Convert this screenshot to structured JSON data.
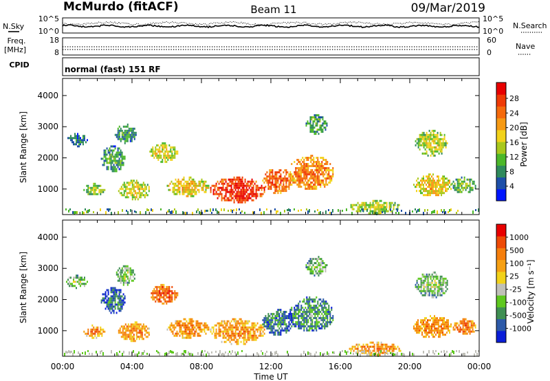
{
  "header": {
    "station": "McMurdo (fitACF)",
    "beam": "Beam 11",
    "date": "09/Mar/2019"
  },
  "noise_panel": {
    "left_label": "N.Sky",
    "right_label": "N.Search",
    "tick_top_left": "10^5",
    "tick_bottom_left": "10^0",
    "tick_top_right": "10^5",
    "tick_bottom_right": "10^0"
  },
  "freq_panel": {
    "left_label_1": "Freq.",
    "left_label_2": "[MHz]",
    "right_label": "Nave",
    "left_ticks": [
      "18",
      "8"
    ],
    "right_ticks": [
      "60",
      "0"
    ]
  },
  "cpid_panel": {
    "label": "CPID",
    "mode": "normal (fast) 151 RF"
  },
  "x_axis": {
    "title": "Time UT",
    "ticks": [
      "00:00",
      "04:00",
      "08:00",
      "12:00",
      "16:00",
      "20:00",
      "00:00"
    ]
  },
  "chart_data": [
    {
      "type": "heatmap",
      "title": "",
      "ylabel": "Slant Range [km]",
      "xlabel": "Time UT",
      "xlim": [
        0,
        24
      ],
      "ylim": [
        180,
        4550
      ],
      "yticks": [
        "1000",
        "2000",
        "3000",
        "4000"
      ],
      "colorbar": {
        "label": "Power [dB]",
        "tick_labels": [
          "4",
          "8",
          "12",
          "16",
          "20",
          "24",
          "28"
        ],
        "colors": [
          "#0016ff",
          "#1d4fa8",
          "#2f8a5c",
          "#4cb82a",
          "#a9c81c",
          "#f2d21a",
          "#f69a14",
          "#f56a0c",
          "#ef3a05",
          "#e80000"
        ]
      },
      "echo_regions": [
        {
          "t": [
            0.2,
            1.4
          ],
          "r": [
            2400,
            2800
          ],
          "level": 0.25
        },
        {
          "t": [
            1.2,
            2.4
          ],
          "r": [
            800,
            1200
          ],
          "level": 0.45
        },
        {
          "t": [
            2.2,
            3.6
          ],
          "r": [
            1600,
            2400
          ],
          "level": 0.35
        },
        {
          "t": [
            3.0,
            4.2
          ],
          "r": [
            2500,
            3100
          ],
          "level": 0.3
        },
        {
          "t": [
            3.2,
            5.0
          ],
          "r": [
            700,
            1300
          ],
          "level": 0.55
        },
        {
          "t": [
            5.0,
            6.6
          ],
          "r": [
            1900,
            2500
          ],
          "level": 0.55
        },
        {
          "t": [
            6.0,
            8.4
          ],
          "r": [
            800,
            1400
          ],
          "level": 0.6
        },
        {
          "t": [
            8.5,
            11.6
          ],
          "r": [
            600,
            1400
          ],
          "level": 0.92
        },
        {
          "t": [
            11.5,
            13.2
          ],
          "r": [
            900,
            1700
          ],
          "level": 0.8
        },
        {
          "t": [
            13.0,
            15.6
          ],
          "r": [
            1000,
            2100
          ],
          "level": 0.75
        },
        {
          "t": [
            14.0,
            15.2
          ],
          "r": [
            2800,
            3400
          ],
          "level": 0.35
        },
        {
          "t": [
            16.5,
            19.5
          ],
          "r": [
            250,
            650
          ],
          "level": 0.5
        },
        {
          "t": [
            20.2,
            22.4
          ],
          "r": [
            800,
            1500
          ],
          "level": 0.6
        },
        {
          "t": [
            20.3,
            22.2
          ],
          "r": [
            2100,
            2900
          ],
          "level": 0.5
        },
        {
          "t": [
            22.4,
            23.8
          ],
          "r": [
            900,
            1400
          ],
          "level": 0.4
        }
      ]
    },
    {
      "type": "heatmap",
      "title": "",
      "ylabel": "Slant Range [km]",
      "xlabel": "Time UT",
      "xlim": [
        0,
        24
      ],
      "ylim": [
        180,
        4550
      ],
      "yticks": [
        "1000",
        "2000",
        "3000",
        "4000"
      ],
      "colorbar": {
        "label": "Velocity [m s⁻¹]",
        "tick_labels": [
          "1000",
          "500",
          "100",
          "25",
          "-25",
          "-100",
          "-500",
          "-1000"
        ],
        "colors": [
          "#0a1ed8",
          "#2d5aa8",
          "#3f8f52",
          "#5ec81e",
          "#c0c0b8",
          "#f2d21a",
          "#f6a014",
          "#f57e0c",
          "#ee4a06",
          "#e80000"
        ]
      },
      "echo_regions": [
        {
          "t": [
            0.2,
            1.4
          ],
          "r": [
            2400,
            2800
          ],
          "level": 0.4
        },
        {
          "t": [
            1.2,
            2.4
          ],
          "r": [
            800,
            1200
          ],
          "level": 0.75
        },
        {
          "t": [
            2.2,
            3.6
          ],
          "r": [
            1600,
            2400
          ],
          "level": 0.2
        },
        {
          "t": [
            3.0,
            4.2
          ],
          "r": [
            2500,
            3100
          ],
          "level": 0.4
        },
        {
          "t": [
            3.2,
            5.0
          ],
          "r": [
            700,
            1300
          ],
          "level": 0.75
        },
        {
          "t": [
            5.0,
            6.6
          ],
          "r": [
            1900,
            2500
          ],
          "level": 0.85
        },
        {
          "t": [
            6.0,
            8.4
          ],
          "r": [
            800,
            1400
          ],
          "level": 0.75
        },
        {
          "t": [
            8.5,
            11.6
          ],
          "r": [
            600,
            1400
          ],
          "level": 0.72
        },
        {
          "t": [
            11.5,
            13.2
          ],
          "r": [
            900,
            1700
          ],
          "level": 0.25
        },
        {
          "t": [
            13.0,
            15.6
          ],
          "r": [
            1000,
            2100
          ],
          "level": 0.3
        },
        {
          "t": [
            14.0,
            15.2
          ],
          "r": [
            2800,
            3400
          ],
          "level": 0.4
        },
        {
          "t": [
            16.5,
            19.5
          ],
          "r": [
            250,
            650
          ],
          "level": 0.75
        },
        {
          "t": [
            20.2,
            22.4
          ],
          "r": [
            800,
            1500
          ],
          "level": 0.75
        },
        {
          "t": [
            20.3,
            22.2
          ],
          "r": [
            2100,
            2900
          ],
          "level": 0.4
        },
        {
          "t": [
            22.4,
            23.8
          ],
          "r": [
            900,
            1400
          ],
          "level": 0.8
        }
      ]
    }
  ]
}
